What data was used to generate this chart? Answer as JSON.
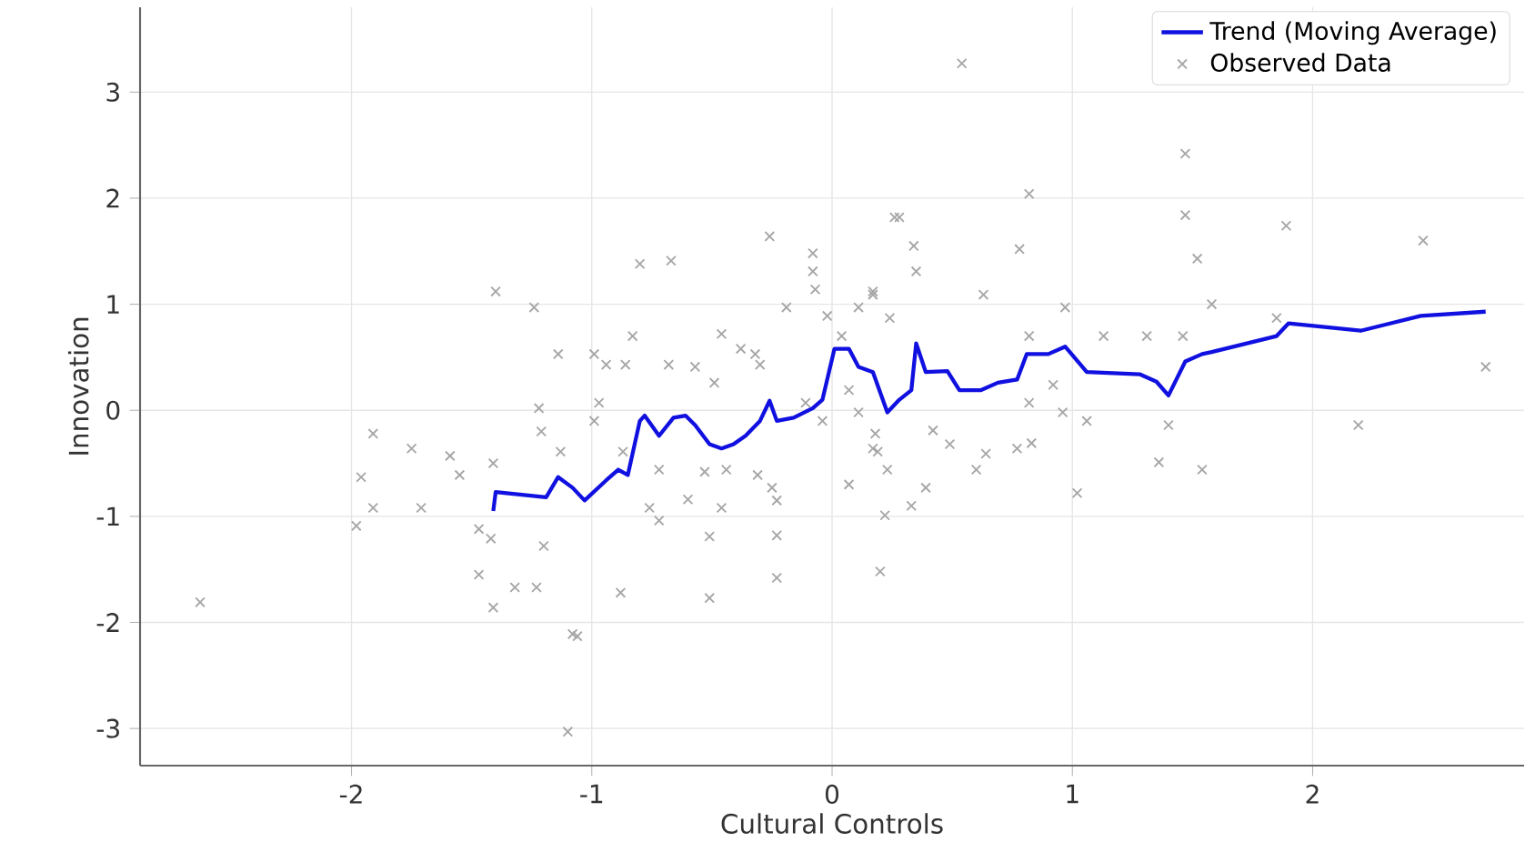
{
  "chart_data": {
    "type": "scatter",
    "xlabel": "Cultural Controls",
    "ylabel": "Innovation",
    "xlim": [
      -2.88,
      2.88
    ],
    "ylim": [
      -3.35,
      3.8
    ],
    "xticks": [
      -2,
      -1,
      0,
      1,
      2
    ],
    "yticks": [
      -3,
      -2,
      -1,
      0,
      1,
      2,
      3
    ],
    "grid": true,
    "legend": "top right",
    "series": [
      {
        "name": "Trend (Moving Average)",
        "type": "line",
        "color": "#1010e0",
        "x": [
          -1.41,
          -1.4,
          -1.19,
          -1.14,
          -1.08,
          -1.03,
          -0.94,
          -0.89,
          -0.85,
          -0.8,
          -0.78,
          -0.72,
          -0.66,
          -0.61,
          -0.57,
          -0.51,
          -0.46,
          -0.41,
          -0.36,
          -0.3,
          -0.26,
          -0.23,
          -0.16,
          -0.08,
          -0.04,
          0.01,
          0.07,
          0.11,
          0.17,
          0.23,
          0.28,
          0.33,
          0.35,
          0.39,
          0.48,
          0.53,
          0.62,
          0.69,
          0.77,
          0.81,
          0.9,
          0.97,
          1.06,
          1.28,
          1.35,
          1.4,
          1.47,
          1.54,
          1.58,
          1.85,
          1.9,
          2.2,
          2.45,
          2.72
        ],
        "values": [
          -0.95,
          -0.77,
          -0.82,
          -0.63,
          -0.73,
          -0.85,
          -0.66,
          -0.56,
          -0.61,
          -0.1,
          -0.05,
          -0.24,
          -0.07,
          -0.05,
          -0.14,
          -0.32,
          -0.36,
          -0.32,
          -0.24,
          -0.1,
          0.09,
          -0.1,
          -0.07,
          0.02,
          0.1,
          0.58,
          0.58,
          0.41,
          0.36,
          -0.02,
          0.1,
          0.19,
          0.63,
          0.36,
          0.37,
          0.19,
          0.19,
          0.26,
          0.29,
          0.53,
          0.53,
          0.6,
          0.36,
          0.34,
          0.27,
          0.14,
          0.46,
          0.53,
          0.55,
          0.7,
          0.82,
          0.75,
          0.89,
          0.93
        ]
      },
      {
        "name": "Observed Data",
        "marker": "cross",
        "color": "#a6a6a6",
        "x": [
          -2.63,
          -1.91,
          -1.96,
          -1.98,
          -1.91,
          -1.75,
          -1.71,
          -1.59,
          -1.55,
          -1.41,
          -1.4,
          -1.24,
          -1.14,
          -1.22,
          -1.21,
          -1.13,
          -1.47,
          -1.41,
          -1.32,
          -1.23,
          -1.2,
          -1.47,
          -1.42,
          -1.08,
          -1.1,
          -0.99,
          -0.94,
          -0.86,
          -0.83,
          -0.8,
          -0.67,
          -0.68,
          -0.57,
          -0.46,
          -0.49,
          -0.38,
          -0.32,
          -0.3,
          -0.26,
          -0.19,
          -0.08,
          -0.08,
          -0.07,
          -0.02,
          0.04,
          0.17,
          0.11,
          0.26,
          0.24,
          -0.72,
          -0.6,
          -0.76,
          -0.72,
          -0.53,
          -0.46,
          -0.44,
          -0.31,
          -0.25,
          -0.23,
          -0.23,
          -0.51,
          -0.23,
          -0.51,
          -0.88,
          -1.06,
          0.19,
          0.23,
          0.22,
          0.2,
          0.07,
          0.11,
          0.18,
          -0.04,
          0.07,
          -0.11,
          -0.99,
          -0.87,
          -0.97,
          0.54,
          0.28,
          0.34,
          0.35,
          0.17,
          0.63,
          0.78,
          0.82,
          0.82,
          0.97,
          0.92,
          0.96,
          1.06,
          1.02,
          1.13,
          1.31,
          1.46,
          1.47,
          1.47,
          1.52,
          1.58,
          1.4,
          1.36,
          1.54,
          0.17,
          0.39,
          0.33,
          0.49,
          0.6,
          0.64,
          0.77,
          0.83,
          0.42,
          0.82,
          1.89,
          2.46,
          1.85,
          2.19,
          2.72
        ],
        "values": [
          -1.81,
          -0.22,
          -0.63,
          -1.09,
          -0.92,
          -0.36,
          -0.92,
          -0.43,
          -0.61,
          -0.5,
          1.12,
          0.97,
          0.53,
          0.02,
          -0.2,
          -0.39,
          -1.55,
          -1.86,
          -1.67,
          -1.67,
          -1.28,
          -1.12,
          -1.21,
          -2.11,
          -3.03,
          0.53,
          0.43,
          0.43,
          0.7,
          1.38,
          1.41,
          0.43,
          0.41,
          0.72,
          0.26,
          0.58,
          0.53,
          0.43,
          1.64,
          0.97,
          1.48,
          1.31,
          1.14,
          0.89,
          0.7,
          1.12,
          0.97,
          1.82,
          0.87,
          -0.56,
          -0.84,
          -0.92,
          -1.04,
          -0.58,
          -0.92,
          -0.56,
          -0.61,
          -0.73,
          -0.85,
          -1.18,
          -1.19,
          -1.58,
          -1.77,
          -1.72,
          -2.13,
          -0.39,
          -0.56,
          -0.99,
          -1.52,
          -0.7,
          -0.02,
          -0.22,
          -0.1,
          0.19,
          0.07,
          -0.1,
          -0.39,
          0.07,
          3.27,
          1.82,
          1.55,
          1.31,
          1.09,
          1.09,
          1.52,
          2.04,
          0.7,
          0.97,
          0.24,
          -0.02,
          -0.1,
          -0.78,
          0.7,
          0.7,
          0.7,
          2.42,
          1.84,
          1.43,
          1.0,
          -0.14,
          -0.49,
          -0.56,
          -0.36,
          -0.73,
          -0.9,
          -0.32,
          -0.56,
          -0.41,
          -0.36,
          -0.31,
          -0.19,
          0.07,
          1.74,
          1.6,
          0.87,
          -0.14,
          0.41
        ]
      }
    ]
  }
}
